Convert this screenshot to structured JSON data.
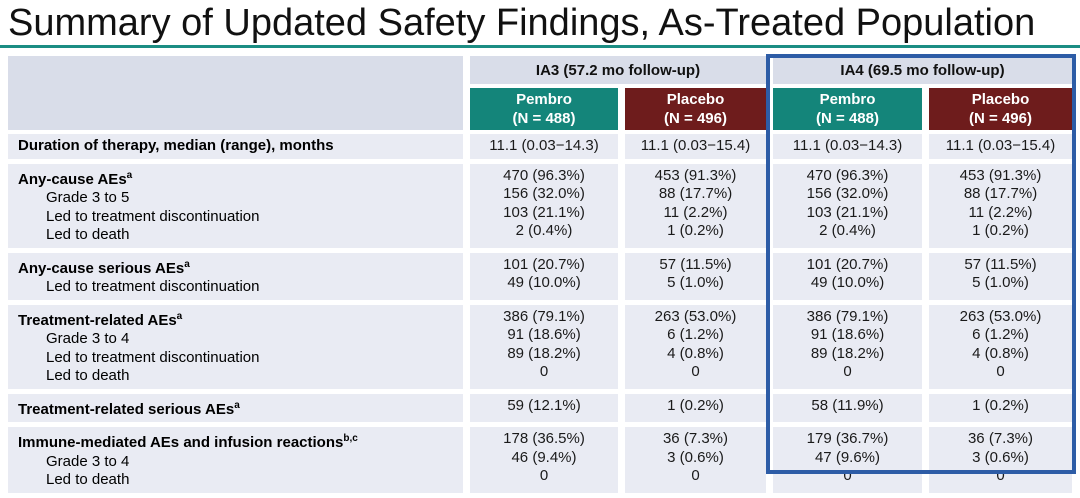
{
  "title": "Summary of Updated Safety Findings, As-Treated Population",
  "colors": {
    "pembro_teal": "#14857A",
    "placebo_maroon": "#6E1C1C",
    "header_band": "#D9DDE9",
    "row_background": "#E9EBF3",
    "ia4_highlight_blue": "#2D5CA6",
    "title_rule_teal": "#1B8D83"
  },
  "table": {
    "ia3": {
      "label": "IA3 (57.2 mo follow-up)",
      "columns": [
        {
          "name": "Pembro",
          "n": "(N = 488)"
        },
        {
          "name": "Placebo",
          "n": "(N = 496)"
        }
      ]
    },
    "ia4": {
      "label": "IA4 (69.5 mo follow-up)",
      "highlighted": true,
      "columns": [
        {
          "name": "Pembro",
          "n": "(N = 488)"
        },
        {
          "name": "Placebo",
          "n": "(N = 496)"
        }
      ]
    },
    "row_groups": [
      {
        "rows": [
          {
            "label": "Duration of therapy, median (range), months",
            "sup": "",
            "indent": false,
            "values": [
              "11.1 (0.03−14.3)",
              "11.1 (0.03−15.4)",
              "11.1 (0.03−14.3)",
              "11.1 (0.03−15.4)"
            ]
          }
        ]
      },
      {
        "rows": [
          {
            "label": "Any-cause AEs",
            "sup": "a",
            "indent": false,
            "values": [
              "470 (96.3%)",
              "453 (91.3%)",
              "470 (96.3%)",
              "453 (91.3%)"
            ]
          },
          {
            "label": "Grade 3 to 5",
            "sup": "",
            "indent": true,
            "values": [
              "156 (32.0%)",
              "88 (17.7%)",
              "156 (32.0%)",
              "88 (17.7%)"
            ]
          },
          {
            "label": "Led to treatment discontinuation",
            "sup": "",
            "indent": true,
            "values": [
              "103 (21.1%)",
              "11 (2.2%)",
              "103 (21.1%)",
              "11 (2.2%)"
            ]
          },
          {
            "label": "Led to death",
            "sup": "",
            "indent": true,
            "values": [
              "2 (0.4%)",
              "1 (0.2%)",
              "2 (0.4%)",
              "1 (0.2%)"
            ]
          }
        ]
      },
      {
        "rows": [
          {
            "label": "Any-cause serious AEs",
            "sup": "a",
            "indent": false,
            "values": [
              "101 (20.7%)",
              "57 (11.5%)",
              "101 (20.7%)",
              "57 (11.5%)"
            ]
          },
          {
            "label": "Led to treatment discontinuation",
            "sup": "",
            "indent": true,
            "values": [
              "49 (10.0%)",
              "5 (1.0%)",
              "49 (10.0%)",
              "5 (1.0%)"
            ]
          }
        ]
      },
      {
        "rows": [
          {
            "label": "Treatment-related AEs",
            "sup": "a",
            "indent": false,
            "values": [
              "386 (79.1%)",
              "263 (53.0%)",
              "386 (79.1%)",
              "263 (53.0%)"
            ]
          },
          {
            "label": "Grade 3 to 4",
            "sup": "",
            "indent": true,
            "values": [
              "91 (18.6%)",
              "6 (1.2%)",
              "91 (18.6%)",
              "6 (1.2%)"
            ]
          },
          {
            "label": "Led to treatment discontinuation",
            "sup": "",
            "indent": true,
            "values": [
              "89 (18.2%)",
              "4 (0.8%)",
              "89 (18.2%)",
              "4 (0.8%)"
            ]
          },
          {
            "label": "Led to death",
            "sup": "",
            "indent": true,
            "values": [
              "0",
              "0",
              "0",
              "0"
            ]
          }
        ]
      },
      {
        "rows": [
          {
            "label": "Treatment-related serious AEs",
            "sup": "a",
            "indent": false,
            "values": [
              "59 (12.1%)",
              "1 (0.2%)",
              "58 (11.9%)",
              "1 (0.2%)"
            ]
          }
        ]
      },
      {
        "rows": [
          {
            "label": "Immune-mediated AEs and infusion reactions",
            "sup": "b,c",
            "indent": false,
            "values": [
              "178 (36.5%)",
              "36 (7.3%)",
              "179 (36.7%)",
              "36 (7.3%)"
            ]
          },
          {
            "label": "Grade 3 to 4",
            "sup": "",
            "indent": true,
            "values": [
              "46 (9.4%)",
              "3 (0.6%)",
              "47 (9.6%)",
              "3 (0.6%)"
            ]
          },
          {
            "label": "Led to death",
            "sup": "",
            "indent": true,
            "values": [
              "0",
              "0",
              "0",
              "0"
            ]
          }
        ]
      }
    ]
  }
}
